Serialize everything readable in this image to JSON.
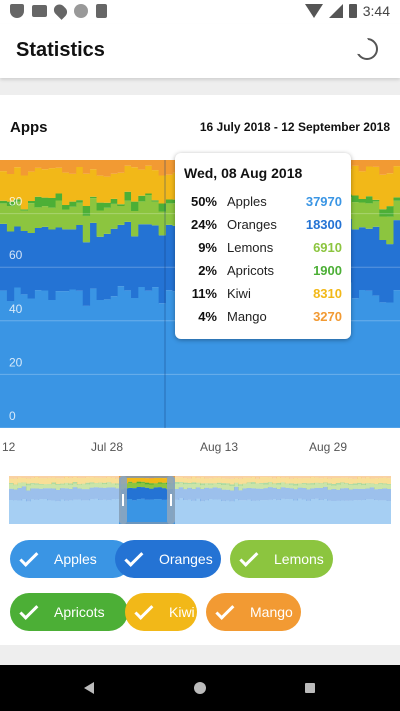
{
  "status_bar": {
    "time": "3:44"
  },
  "app_bar": {
    "title": "Statistics"
  },
  "card": {
    "title": "Apps",
    "date_range": "16 July 2018 - 12 September 2018"
  },
  "tooltip": {
    "date": "Wed, 08 Aug 2018",
    "rows": [
      {
        "pct": "50%",
        "name": "Apples",
        "value": "37970",
        "color": "#3a95e4"
      },
      {
        "pct": "24%",
        "name": "Oranges",
        "value": "18300",
        "color": "#2473d4"
      },
      {
        "pct": "9%",
        "name": "Lemons",
        "value": "6910",
        "color": "#8cc53f"
      },
      {
        "pct": "2%",
        "name": "Apricots",
        "value": "1900",
        "color": "#4caf36"
      },
      {
        "pct": "11%",
        "name": "Kiwi",
        "value": "8310",
        "color": "#f2b818"
      },
      {
        "pct": "4%",
        "name": "Mango",
        "value": "3270",
        "color": "#f29a33"
      }
    ]
  },
  "x_labels": [
    "12",
    "Jul 28",
    "Aug 13",
    "Aug 29"
  ],
  "chips": [
    {
      "label": "Apples",
      "color": "#3a95e4"
    },
    {
      "label": "Oranges",
      "color": "#2473d4"
    },
    {
      "label": "Lemons",
      "color": "#8cc53f"
    },
    {
      "label": "Apricots",
      "color": "#4caf36"
    },
    {
      "label": "Kiwi",
      "color": "#f2b818"
    },
    {
      "label": "Mango",
      "color": "#f29a33"
    }
  ],
  "chart_data": {
    "type": "area",
    "stacked": "percentage",
    "y_ticks": [
      "0",
      "20",
      "40",
      "60",
      "80"
    ],
    "ylim": [
      0,
      100
    ],
    "x_tick_labels": [
      "12",
      "Jul 28",
      "Aug 13",
      "Aug 29"
    ],
    "series": [
      {
        "name": "Apples",
        "color": "#3a95e4",
        "base_pct": 50
      },
      {
        "name": "Oranges",
        "color": "#2473d4",
        "base_pct": 24
      },
      {
        "name": "Lemons",
        "color": "#8cc53f",
        "base_pct": 9
      },
      {
        "name": "Apricots",
        "color": "#4caf36",
        "base_pct": 2
      },
      {
        "name": "Kiwi",
        "color": "#f2b818",
        "base_pct": 11
      },
      {
        "name": "Mango",
        "color": "#f29a33",
        "base_pct": 4
      }
    ],
    "selected_point": "Wed, 08 Aug 2018"
  }
}
